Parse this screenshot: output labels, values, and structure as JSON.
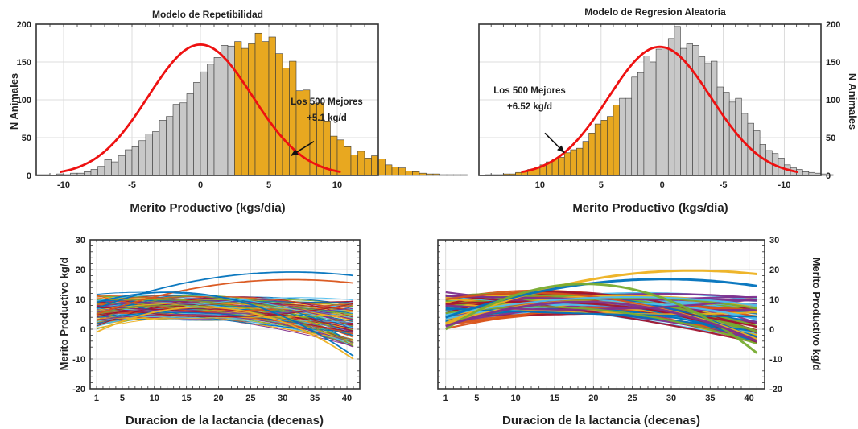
{
  "colors": {
    "bar": "#c8c8c8",
    "bar_top": "#e8a820",
    "curve": "#ee1111",
    "grid": "#dcdcdc",
    "axis": "#333333",
    "palette": [
      "#0072bd",
      "#d95319",
      "#edb120",
      "#7e2f8e",
      "#77ac30",
      "#4dbeee",
      "#a2142f"
    ]
  },
  "chart_data": [
    {
      "id": "hist_repetibilidad",
      "type": "bar",
      "title": "Modelo de Repetibilidad",
      "xlabel": "Merito Productivo (kgs/dia)",
      "ylabel": "N Animales",
      "ylabel_side": "left",
      "xlim": [
        -12,
        13
      ],
      "x_reversed": false,
      "ylim": [
        0,
        200
      ],
      "xticks": [
        -10,
        -5,
        0,
        5,
        10
      ],
      "yticks": [
        0,
        50,
        100,
        150,
        200
      ],
      "bin_width": 0.5,
      "bin_start": -11.75,
      "counts": [
        1,
        1,
        0,
        2,
        1,
        3,
        3,
        5,
        8,
        12,
        21,
        18,
        26,
        34,
        38,
        46,
        55,
        58,
        73,
        78,
        94,
        96,
        108,
        123,
        137,
        147,
        156,
        172,
        171,
        177,
        168,
        174,
        188,
        177,
        183,
        161,
        142,
        151,
        112,
        113,
        95,
        96,
        72,
        52,
        47,
        38,
        27,
        32,
        23,
        26,
        22,
        14,
        11,
        10,
        6,
        5,
        3,
        2,
        2,
        1,
        1,
        1,
        1
      ],
      "top_start": 2.75,
      "curve": {
        "mean": 0,
        "sd": 3.8,
        "peak": 173
      },
      "annotation": [
        "Los 500 Mejores",
        "+5.1 kg/d"
      ]
    },
    {
      "id": "hist_regresion",
      "type": "bar",
      "title": "Modelo de Regresion Aleatoria",
      "xlabel": "Merito Productivo (kgs/dia)",
      "ylabel": "N Animales",
      "ylabel_side": "right",
      "xlim": [
        15,
        -13
      ],
      "x_reversed": true,
      "ylim": [
        0,
        200
      ],
      "xticks": [
        10,
        5,
        0,
        -5,
        -10
      ],
      "yticks": [
        0,
        50,
        100,
        150,
        200
      ],
      "bin_width": 0.5,
      "bin_start": 14.25,
      "counts": [
        1,
        1,
        1,
        2,
        2,
        4,
        6,
        8,
        11,
        14,
        18,
        22,
        24,
        30,
        34,
        36,
        45,
        56,
        68,
        73,
        78,
        93,
        102,
        102,
        130,
        136,
        158,
        150,
        167,
        169,
        181,
        197,
        168,
        174,
        172,
        157,
        148,
        151,
        117,
        110,
        97,
        102,
        82,
        69,
        59,
        41,
        33,
        29,
        23,
        14,
        10,
        8,
        5,
        4,
        3,
        2,
        1
      ],
      "top_end": 3.5,
      "curve": {
        "mean": 0.2,
        "sd": 4.2,
        "peak": 170
      },
      "annotation": [
        "Los 500 Mejores",
        "+6.52 kg/d"
      ]
    },
    {
      "id": "lines_repetibilidad",
      "type": "line",
      "xlabel": "Duracion de la lactancia (decenas)",
      "ylabel": "Merito Productivo kg/d",
      "ylabel_side": "left",
      "xlim": [
        0,
        42
      ],
      "ylim": [
        -20,
        30
      ],
      "xticks": [
        1,
        5,
        10,
        15,
        20,
        25,
        30,
        35,
        40
      ],
      "yticks": [
        -20,
        -10,
        0,
        10,
        20,
        30
      ],
      "n_series": 140,
      "line_width": 1,
      "extremes": [
        {
          "y_start": 7,
          "y_mid": 11,
          "y_end": 18,
          "peak": 20.5,
          "color": "#0072bd"
        },
        {
          "y_start": 5,
          "y_mid": 10,
          "y_end": 15.5,
          "peak": 16.5,
          "color": "#d95319"
        },
        {
          "y_start": 9,
          "y_mid": 8,
          "y_end": -9,
          "peak": 9,
          "color": "#0072bd"
        },
        {
          "y_start": -1,
          "y_mid": 5,
          "y_end": -10,
          "peak": 5,
          "color": "#edb120"
        }
      ]
    },
    {
      "id": "lines_regresion",
      "type": "line",
      "xlabel": "Duracion de la lactancia (decenas)",
      "ylabel": "Merito Productivo kg/d",
      "ylabel_side": "right",
      "xlim": [
        0,
        42
      ],
      "ylim": [
        -20,
        30
      ],
      "xticks": [
        1,
        5,
        10,
        15,
        20,
        25,
        30,
        35,
        40
      ],
      "yticks": [
        -20,
        -10,
        0,
        10,
        20,
        30
      ],
      "n_series": 90,
      "line_width": 2.2,
      "extremes": [
        {
          "y_start": 2,
          "y_mid": 10,
          "y_end": 18.5,
          "peak": 20.5,
          "color": "#edb120"
        },
        {
          "y_start": 4,
          "y_mid": 11,
          "y_end": 14.5,
          "peak": 16.5,
          "color": "#0072bd"
        },
        {
          "y_start": 0,
          "y_mid": 13,
          "y_end": -8,
          "peak": 13,
          "color": "#77ac30"
        },
        {
          "y_start": 1,
          "y_mid": 7,
          "y_end": -4,
          "peak": 7,
          "color": "#7e2f8e"
        }
      ]
    }
  ]
}
